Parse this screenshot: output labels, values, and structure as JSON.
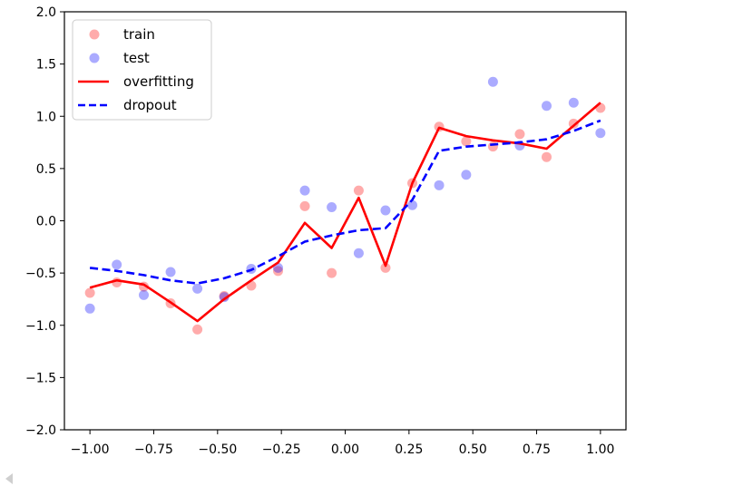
{
  "chart_data": {
    "type": "scatter",
    "title": "",
    "xlabel": "",
    "ylabel": "",
    "xlim": [
      -1.1,
      1.1
    ],
    "ylim": [
      -2.0,
      2.0
    ],
    "x_ticks": [
      -1.0,
      -0.75,
      -0.5,
      -0.25,
      0.0,
      0.25,
      0.5,
      0.75,
      1.0
    ],
    "x_tick_labels": [
      "−1.00",
      "−0.75",
      "−0.50",
      "−0.25",
      "0.00",
      "0.25",
      "0.50",
      "0.75",
      "1.00"
    ],
    "y_ticks": [
      -2.0,
      -1.5,
      -1.0,
      -0.5,
      0.0,
      0.5,
      1.0,
      1.5,
      2.0
    ],
    "y_tick_labels": [
      "−2.0",
      "−1.5",
      "−1.0",
      "−0.5",
      "0.0",
      "0.5",
      "1.0",
      "1.5",
      "2.0"
    ],
    "grid": false,
    "legend_position": "top-left",
    "x": [
      -1.0,
      -0.895,
      -0.789,
      -0.684,
      -0.579,
      -0.474,
      -0.368,
      -0.263,
      -0.158,
      -0.053,
      0.053,
      0.158,
      0.263,
      0.368,
      0.474,
      0.579,
      0.684,
      0.789,
      0.895,
      1.0
    ],
    "series": [
      {
        "name": "train",
        "kind": "scatter",
        "color": "#ff8080",
        "values": [
          -0.69,
          -0.59,
          -0.63,
          -0.79,
          -1.04,
          -0.72,
          -0.62,
          -0.48,
          0.14,
          -0.5,
          0.29,
          -0.45,
          0.36,
          0.9,
          0.76,
          0.71,
          0.83,
          0.61,
          0.93,
          1.08
        ]
      },
      {
        "name": "test",
        "kind": "scatter",
        "color": "#8080ff",
        "values": [
          -0.84,
          -0.42,
          -0.71,
          -0.49,
          -0.65,
          -0.73,
          -0.46,
          -0.45,
          0.29,
          0.13,
          -0.31,
          0.1,
          0.15,
          0.34,
          0.44,
          1.33,
          0.72,
          1.1,
          1.13,
          0.84
        ]
      },
      {
        "name": "overfitting",
        "kind": "line",
        "color": "#ff0000",
        "dash": "solid",
        "values": [
          -0.64,
          -0.57,
          -0.61,
          -0.78,
          -0.96,
          -0.75,
          -0.57,
          -0.4,
          -0.02,
          -0.26,
          0.22,
          -0.43,
          0.36,
          0.89,
          0.81,
          0.77,
          0.74,
          0.69,
          0.91,
          1.13
        ]
      },
      {
        "name": "dropout",
        "kind": "line",
        "color": "#0000ff",
        "dash": "dashed",
        "values": [
          -0.45,
          -0.48,
          -0.52,
          -0.57,
          -0.6,
          -0.55,
          -0.47,
          -0.34,
          -0.2,
          -0.14,
          -0.09,
          -0.07,
          0.2,
          0.67,
          0.71,
          0.73,
          0.75,
          0.78,
          0.86,
          0.96
        ]
      }
    ]
  }
}
